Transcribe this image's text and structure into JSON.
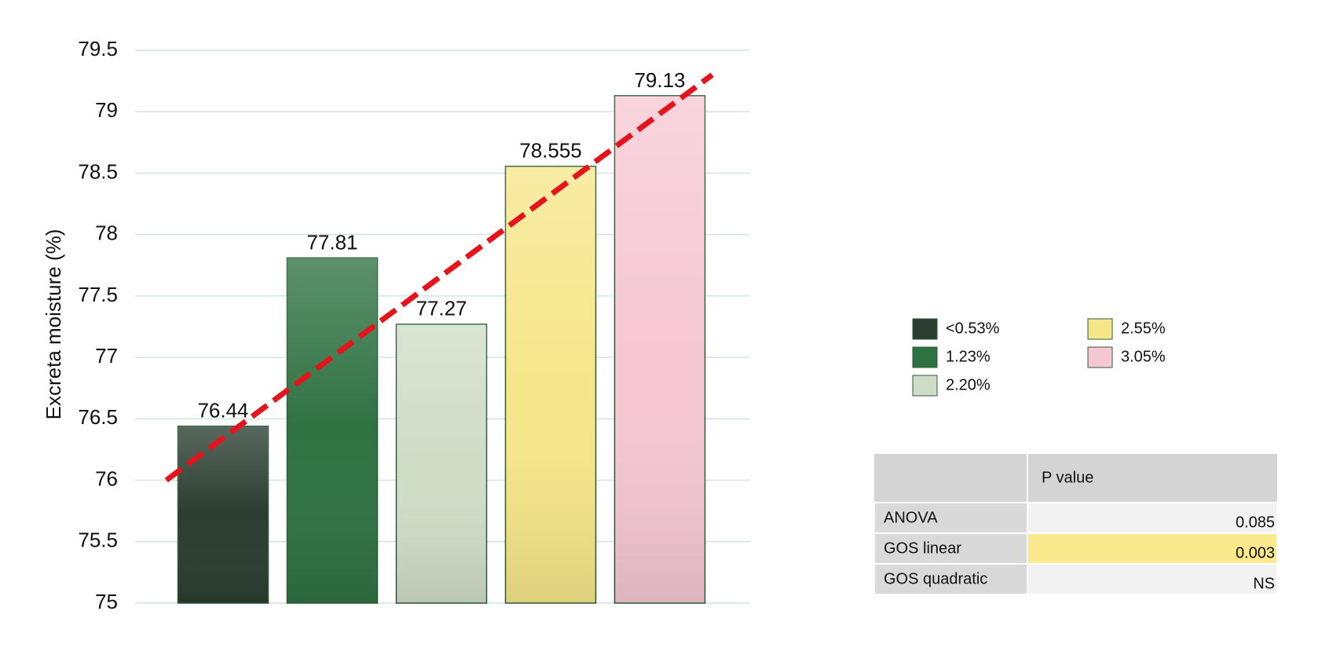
{
  "chart_data": {
    "type": "bar",
    "y_label": "Excreta moisture (%)",
    "categories": [
      "<0.53%",
      "1.23%",
      "2.20%",
      "2.55%",
      "3.05%"
    ],
    "values": [
      76.44,
      77.81,
      77.27,
      78.555,
      79.13
    ],
    "colors": [
      "#2a3d30",
      "#2f7242",
      "#cfdcc6",
      "#f6e68a",
      "#f6c8d3"
    ],
    "ylim": [
      75,
      79.5
    ],
    "yticks": [
      75,
      75.5,
      76,
      76.5,
      77,
      77.5,
      78,
      78.5,
      79,
      79.5
    ],
    "grid": true,
    "trendline": {
      "color": "#e3141b",
      "values": [
        76.0,
        79.3
      ]
    }
  },
  "table": {
    "header": "P value",
    "rows": [
      [
        "ANOVA",
        0.085
      ],
      [
        "GOS linear",
        0.003
      ],
      [
        "GOS quadratic",
        "NS"
      ]
    ],
    "highlight_row": 1
  }
}
